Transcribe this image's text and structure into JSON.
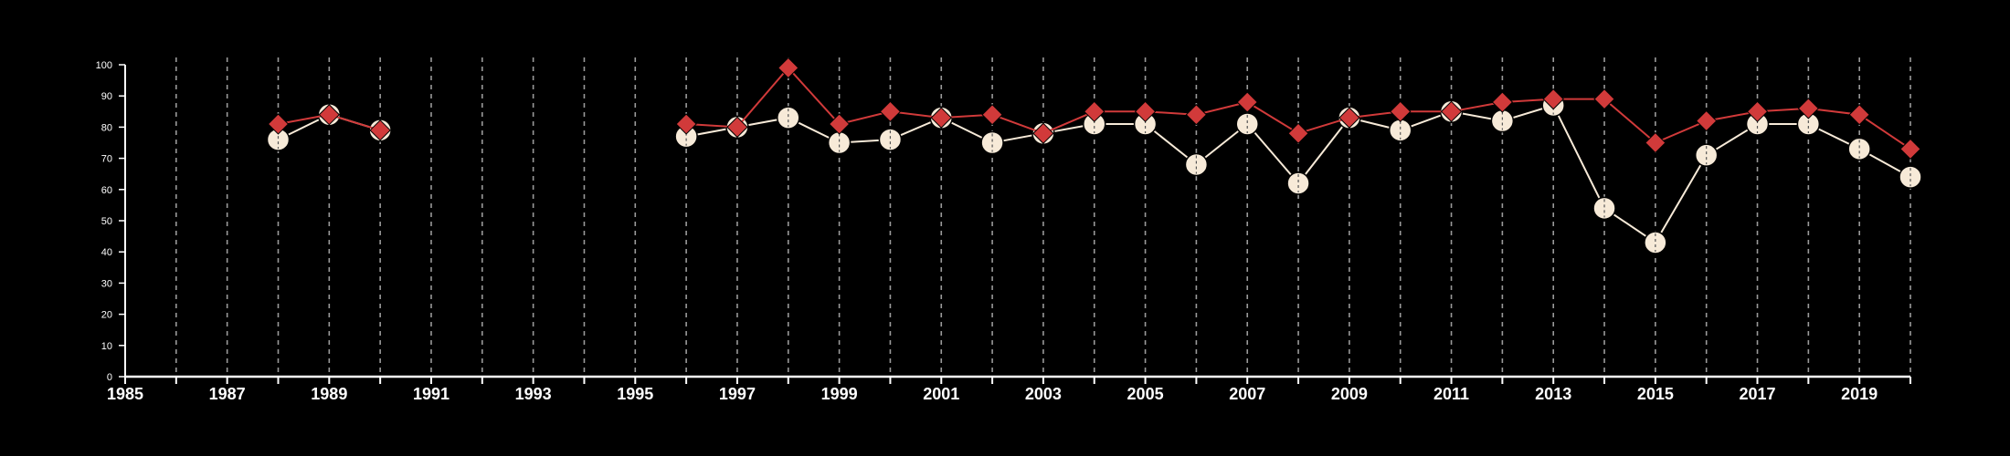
{
  "chart_data": {
    "type": "line",
    "title": "",
    "xlabel": "",
    "ylabel": "",
    "xlim": [
      1985,
      2020
    ],
    "ylim": [
      0,
      100
    ],
    "y_ticks": [
      0,
      10,
      20,
      30,
      40,
      50,
      60,
      70,
      80,
      90,
      100
    ],
    "x_tick_labels": [
      1985,
      1987,
      1989,
      1991,
      1993,
      1995,
      1997,
      1999,
      2001,
      2003,
      2005,
      2007,
      2009,
      2011,
      2013,
      2015,
      2017,
      2019
    ],
    "grid": {
      "vertical": true,
      "style": "dashed",
      "every_year": true,
      "horizontal": false
    },
    "legend": "none",
    "series": [
      {
        "marker": "circle",
        "color": "#f7ead8",
        "stroke": "#000000",
        "points": [
          [
            1988,
            76
          ],
          [
            1989,
            84
          ],
          [
            1990,
            79
          ],
          [
            1996,
            77
          ],
          [
            1997,
            80
          ],
          [
            1998,
            83
          ],
          [
            1999,
            75
          ],
          [
            2000,
            76
          ],
          [
            2001,
            83
          ],
          [
            2002,
            75
          ],
          [
            2003,
            78
          ],
          [
            2004,
            81
          ],
          [
            2005,
            81
          ],
          [
            2006,
            68
          ],
          [
            2007,
            81
          ],
          [
            2008,
            62
          ],
          [
            2009,
            83
          ],
          [
            2010,
            79
          ],
          [
            2011,
            85
          ],
          [
            2012,
            82
          ],
          [
            2013,
            87
          ],
          [
            2014,
            54
          ],
          [
            2015,
            43
          ],
          [
            2016,
            71
          ],
          [
            2017,
            81
          ],
          [
            2018,
            81
          ],
          [
            2019,
            73
          ],
          [
            2020,
            64
          ]
        ]
      },
      {
        "marker": "diamond",
        "color": "#d13a3a",
        "stroke": "#000000",
        "points": [
          [
            1988,
            81
          ],
          [
            1989,
            84
          ],
          [
            1990,
            79
          ],
          [
            1996,
            81
          ],
          [
            1997,
            80
          ],
          [
            1998,
            99
          ],
          [
            1999,
            81
          ],
          [
            2000,
            85
          ],
          [
            2001,
            83
          ],
          [
            2002,
            84
          ],
          [
            2003,
            78
          ],
          [
            2004,
            85
          ],
          [
            2005,
            85
          ],
          [
            2006,
            84
          ],
          [
            2007,
            88
          ],
          [
            2008,
            78
          ],
          [
            2009,
            83
          ],
          [
            2010,
            85
          ],
          [
            2011,
            85
          ],
          [
            2012,
            88
          ],
          [
            2013,
            89
          ],
          [
            2014,
            89
          ],
          [
            2015,
            75
          ],
          [
            2016,
            82
          ],
          [
            2017,
            85
          ],
          [
            2018,
            86
          ],
          [
            2019,
            84
          ],
          [
            2020,
            73
          ]
        ]
      }
    ]
  },
  "colors": {
    "background": "#000000",
    "axis": "#ffffff",
    "grid": "#9a9a9a"
  }
}
